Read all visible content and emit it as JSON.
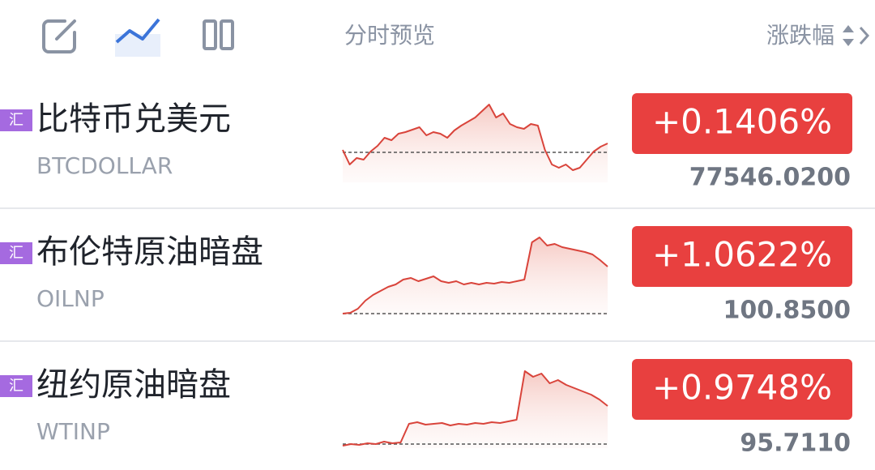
{
  "header": {
    "preview_label": "分时预览",
    "sort_label": "涨跌幅"
  },
  "rows": [
    {
      "badge": "汇",
      "name": "比特币兑美元",
      "code": "BTCDOLLAR",
      "change": "+0.1406%",
      "price": "77546.0200",
      "sparkline": {
        "baseline": 37,
        "values": [
          40,
          22,
          30,
          28,
          38,
          45,
          55,
          52,
          60,
          62,
          65,
          68,
          58,
          62,
          60,
          55,
          64,
          70,
          75,
          80,
          88,
          96,
          80,
          85,
          72,
          68,
          66,
          72,
          70,
          40,
          22,
          18,
          22,
          15,
          18,
          28,
          38,
          44,
          48
        ]
      }
    },
    {
      "badge": "汇",
      "name": "布伦特原油暗盘",
      "code": "OILNP",
      "change": "+1.0622%",
      "price": "100.8500",
      "sparkline": {
        "baseline": 2,
        "values": [
          2,
          3,
          8,
          18,
          25,
          30,
          35,
          38,
          44,
          46,
          42,
          45,
          48,
          42,
          40,
          42,
          38,
          40,
          38,
          40,
          39,
          41,
          40,
          42,
          44,
          90,
          96,
          86,
          88,
          84,
          82,
          80,
          78,
          75,
          68,
          60
        ]
      }
    },
    {
      "badge": "汇",
      "name": "纽约原油暗盘",
      "code": "WTINP",
      "change": "+0.9748%",
      "price": "95.7110",
      "sparkline": {
        "baseline": 5,
        "values": [
          3,
          5,
          4,
          6,
          5,
          8,
          6,
          7,
          30,
          32,
          29,
          30,
          31,
          28,
          30,
          29,
          31,
          30,
          32,
          31,
          33,
          35,
          95,
          88,
          92,
          80,
          84,
          78,
          74,
          70,
          66,
          60,
          52
        ]
      }
    }
  ]
}
